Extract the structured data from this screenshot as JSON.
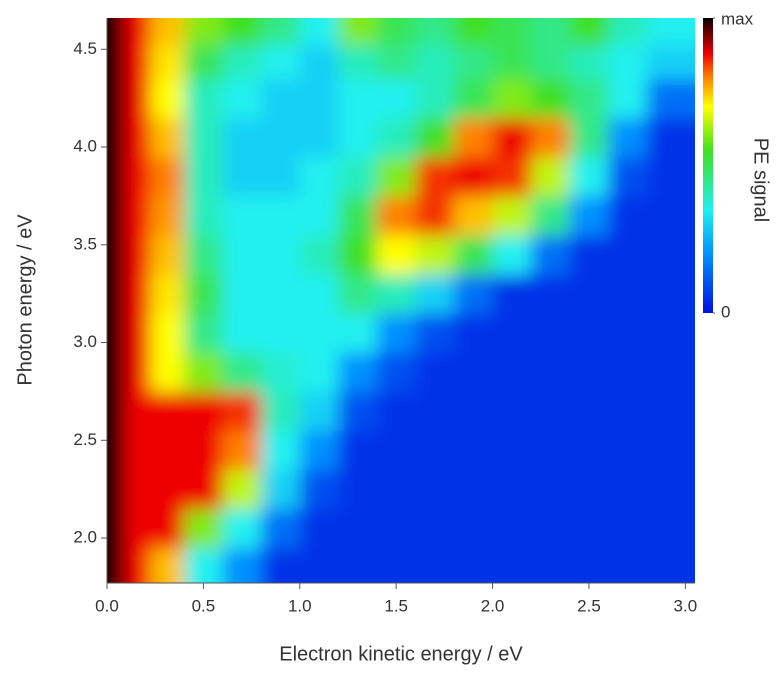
{
  "chart_data": {
    "type": "heatmap",
    "x_label": "Electron kinetic energy / eV",
    "y_label": "Photon energy / eV",
    "colorbar_label": "PE signal",
    "xlim": [
      0,
      3.05
    ],
    "ylim": [
      1.77,
      4.66
    ],
    "xticks": [
      {
        "value": 0,
        "label": "0.0"
      },
      0.5,
      {
        "value": 1,
        "label": "1.0"
      },
      1.5,
      {
        "value": 2,
        "label": "2.0"
      },
      2.5,
      {
        "value": 3,
        "label": "3.0"
      }
    ],
    "yticks": [
      {
        "value": 2,
        "label": "2.0"
      },
      2.5,
      {
        "value": 3,
        "label": "3.0"
      },
      3.5,
      {
        "value": 4,
        "label": "4.0"
      },
      4.5
    ],
    "clim": [
      0,
      1
    ],
    "cticks": [
      0,
      {
        "value": 1,
        "label": "max"
      }
    ],
    "colorscale": [
      [
        0,
        "#0010e0"
      ],
      [
        0.2,
        "#0090ff"
      ],
      [
        0.35,
        "#20f0f0"
      ],
      [
        0.55,
        "#40e020"
      ],
      [
        0.7,
        "#ffff00"
      ],
      [
        0.8,
        "#ff8000"
      ],
      [
        0.88,
        "#ee0000"
      ],
      [
        1,
        "#0a0000"
      ]
    ],
    "x": [
      0.03,
      0.15,
      0.3,
      0.5,
      0.7,
      0.9,
      1.1,
      1.3,
      1.5,
      1.7,
      1.9,
      2.1,
      2.3,
      2.5,
      2.7,
      2.9
    ],
    "y": [
      1.85,
      2.05,
      2.25,
      2.45,
      2.65,
      2.85,
      3.05,
      3.25,
      3.45,
      3.65,
      3.85,
      4.05,
      4.25,
      4.45,
      4.6
    ],
    "z": [
      [
        1,
        0.88,
        0.75,
        0.35,
        0.2,
        0.05,
        0.05,
        0.05,
        0.05,
        0.05,
        0.05,
        0.05,
        0.05,
        0.05,
        0.05,
        0.05
      ],
      [
        1,
        0.88,
        0.88,
        0.6,
        0.35,
        0.15,
        0.05,
        0.05,
        0.05,
        0.05,
        0.05,
        0.05,
        0.05,
        0.05,
        0.05,
        0.05
      ],
      [
        1,
        0.88,
        0.88,
        0.88,
        0.65,
        0.3,
        0.1,
        0.05,
        0.05,
        0.05,
        0.05,
        0.05,
        0.05,
        0.05,
        0.05,
        0.05
      ],
      [
        1,
        0.88,
        0.88,
        0.88,
        0.8,
        0.35,
        0.2,
        0.05,
        0.05,
        0.05,
        0.05,
        0.05,
        0.05,
        0.05,
        0.05,
        0.05
      ],
      [
        1,
        0.88,
        0.88,
        0.88,
        0.85,
        0.4,
        0.3,
        0.1,
        0.05,
        0.05,
        0.05,
        0.05,
        0.05,
        0.05,
        0.05,
        0.05
      ],
      [
        1,
        0.88,
        0.7,
        0.6,
        0.45,
        0.38,
        0.35,
        0.2,
        0.1,
        0.05,
        0.05,
        0.05,
        0.05,
        0.05,
        0.05,
        0.05
      ],
      [
        1,
        0.88,
        0.7,
        0.45,
        0.35,
        0.35,
        0.35,
        0.35,
        0.2,
        0.1,
        0.05,
        0.05,
        0.05,
        0.05,
        0.05,
        0.05
      ],
      [
        1,
        0.88,
        0.72,
        0.5,
        0.35,
        0.35,
        0.35,
        0.45,
        0.4,
        0.3,
        0.15,
        0.05,
        0.05,
        0.05,
        0.05,
        0.05
      ],
      [
        1,
        0.88,
        0.75,
        0.45,
        0.35,
        0.35,
        0.4,
        0.55,
        0.7,
        0.65,
        0.5,
        0.35,
        0.15,
        0.05,
        0.05,
        0.05
      ],
      [
        1,
        0.88,
        0.78,
        0.4,
        0.35,
        0.35,
        0.35,
        0.5,
        0.8,
        0.85,
        0.75,
        0.65,
        0.45,
        0.2,
        0.05,
        0.05
      ],
      [
        1,
        0.88,
        0.8,
        0.4,
        0.3,
        0.3,
        0.35,
        0.4,
        0.6,
        0.85,
        0.88,
        0.85,
        0.65,
        0.35,
        0.1,
        0.05
      ],
      [
        1,
        0.88,
        0.75,
        0.4,
        0.3,
        0.3,
        0.3,
        0.35,
        0.4,
        0.55,
        0.8,
        0.88,
        0.8,
        0.45,
        0.2,
        0.05
      ],
      [
        1,
        0.88,
        0.7,
        0.4,
        0.35,
        0.3,
        0.3,
        0.35,
        0.35,
        0.4,
        0.5,
        0.6,
        0.55,
        0.45,
        0.35,
        0.15
      ],
      [
        1,
        0.88,
        0.72,
        0.5,
        0.4,
        0.35,
        0.3,
        0.4,
        0.45,
        0.4,
        0.45,
        0.5,
        0.45,
        0.4,
        0.35,
        0.3
      ],
      [
        1,
        0.88,
        0.75,
        0.6,
        0.55,
        0.45,
        0.35,
        0.6,
        0.5,
        0.45,
        0.55,
        0.5,
        0.45,
        0.55,
        0.4,
        0.35
      ]
    ]
  }
}
